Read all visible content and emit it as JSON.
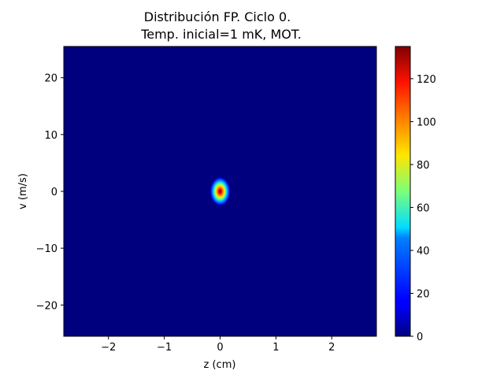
{
  "chart_data": {
    "type": "heatmap",
    "title_line1": "Distribución FP. Ciclo 0.",
    "title_line2": "Temp. inicial=1 mK, MOT.",
    "xlabel": "z (cm)",
    "ylabel": "v (m/s)",
    "xlim": [
      -2.8,
      2.8
    ],
    "ylim": [
      -25.5,
      25.5
    ],
    "x_ticks": [
      {
        "value": -2,
        "label": "−2"
      },
      {
        "value": -1,
        "label": "−1"
      },
      {
        "value": 0,
        "label": "0"
      },
      {
        "value": 1,
        "label": "1"
      },
      {
        "value": 2,
        "label": "2"
      }
    ],
    "y_ticks": [
      {
        "value": -20,
        "label": "−20"
      },
      {
        "value": -10,
        "label": "−10"
      },
      {
        "value": 0,
        "label": "0"
      },
      {
        "value": 10,
        "label": "10"
      },
      {
        "value": 20,
        "label": "20"
      }
    ],
    "colormap": "jet",
    "colorbar_range": [
      0,
      135
    ],
    "colorbar_ticks": [
      {
        "value": 0,
        "label": "0"
      },
      {
        "value": 20,
        "label": "20"
      },
      {
        "value": 40,
        "label": "40"
      },
      {
        "value": 60,
        "label": "60"
      },
      {
        "value": 80,
        "label": "80"
      },
      {
        "value": 100,
        "label": "100"
      },
      {
        "value": 120,
        "label": "120"
      }
    ],
    "peak": {
      "z": 0.0,
      "v": 0.0,
      "value": 135
    },
    "spread": {
      "sigma_z": 0.1,
      "sigma_v": 1.4
    },
    "grid": false
  }
}
